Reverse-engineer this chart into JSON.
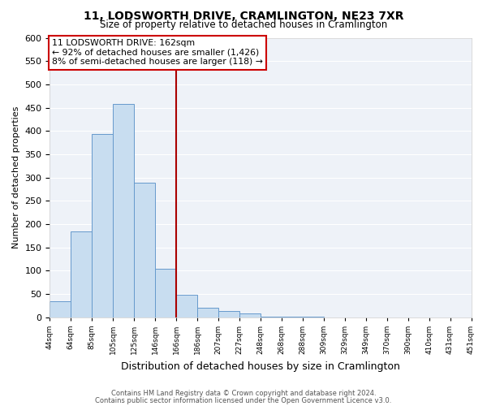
{
  "title": "11, LODSWORTH DRIVE, CRAMLINGTON, NE23 7XR",
  "subtitle": "Size of property relative to detached houses in Cramlington",
  "xlabel": "Distribution of detached houses by size in Cramlington",
  "ylabel": "Number of detached properties",
  "bin_labels": [
    "44sqm",
    "64sqm",
    "85sqm",
    "105sqm",
    "125sqm",
    "146sqm",
    "166sqm",
    "186sqm",
    "207sqm",
    "227sqm",
    "248sqm",
    "268sqm",
    "288sqm",
    "309sqm",
    "329sqm",
    "349sqm",
    "370sqm",
    "390sqm",
    "410sqm",
    "431sqm",
    "451sqm"
  ],
  "bar_heights": [
    35,
    185,
    393,
    458,
    289,
    105,
    48,
    21,
    14,
    8,
    2,
    1,
    1,
    0,
    0,
    0,
    0,
    0,
    0,
    0
  ],
  "bar_color": "#c8ddf0",
  "bar_edge_color": "#6699cc",
  "vline_x_index": 6,
  "vline_color": "#aa0000",
  "annotation_title": "11 LODSWORTH DRIVE: 162sqm",
  "annotation_line1": "← 92% of detached houses are smaller (1,426)",
  "annotation_line2": "8% of semi-detached houses are larger (118) →",
  "annotation_box_color": "#ffffff",
  "annotation_box_edge": "#cc0000",
  "ylim": [
    0,
    600
  ],
  "yticks": [
    0,
    50,
    100,
    150,
    200,
    250,
    300,
    350,
    400,
    450,
    500,
    550,
    600
  ],
  "footer1": "Contains HM Land Registry data © Crown copyright and database right 2024.",
  "footer2": "Contains public sector information licensed under the Open Government Licence v3.0.",
  "background_color": "#ffffff",
  "plot_bg_color": "#eef2f8",
  "grid_color": "#ffffff"
}
